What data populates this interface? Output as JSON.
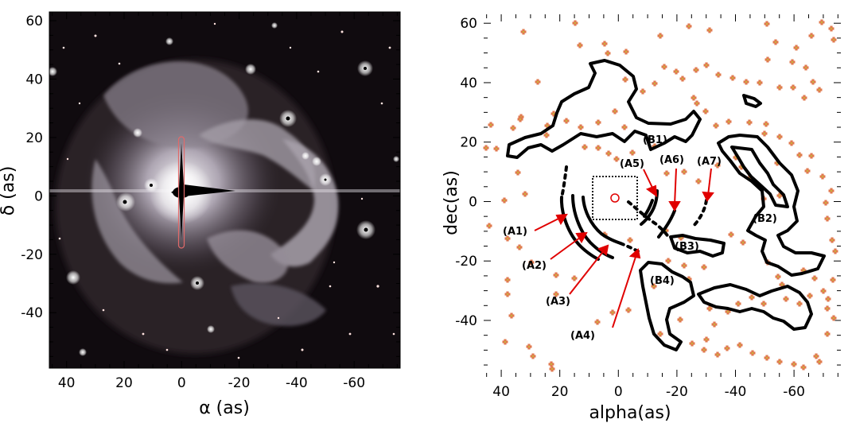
{
  "left_panel": {
    "axis_x_label": "α (as)",
    "axis_y_label": "δ (as)",
    "x_ticks": [
      "40",
      "20",
      "0",
      "-20",
      "-40",
      "-60"
    ],
    "x_tick_values": [
      40,
      20,
      0,
      -20,
      -40,
      -60
    ],
    "y_ticks": [
      "60",
      "40",
      "20",
      "0",
      "-20",
      "-40"
    ],
    "y_tick_values": [
      60,
      40,
      20,
      0,
      -20,
      -40
    ],
    "xlim": [
      46,
      -76
    ],
    "ylim": [
      -59,
      63
    ]
  },
  "right_panel": {
    "axis_x_label": "alpha(as)",
    "axis_y_label": "dec(as)",
    "x_ticks": [
      "40",
      "20",
      "0",
      "-20",
      "-40",
      "-60"
    ],
    "x_tick_values": [
      40,
      20,
      0,
      -20,
      -40,
      -60
    ],
    "y_ticks": [
      "60",
      "40",
      "20",
      "0",
      "-20",
      "-40"
    ],
    "y_tick_values": [
      60,
      40,
      20,
      0,
      -20,
      -40
    ],
    "xlim": [
      46,
      -76
    ],
    "ylim": [
      -59,
      63
    ],
    "annotations": [
      "(A1)",
      "(A2)",
      "(A3)",
      "(A4)",
      "(A5)",
      "(A6)",
      "(A7)",
      "(B1)",
      "(B2)",
      "(B3)",
      "(B4)"
    ]
  },
  "colors": {
    "marker": "#e07a4f",
    "marker_center": "#c9b23a",
    "arrow": "#e00000",
    "circle": "#e00000",
    "contour": "#000000"
  }
}
